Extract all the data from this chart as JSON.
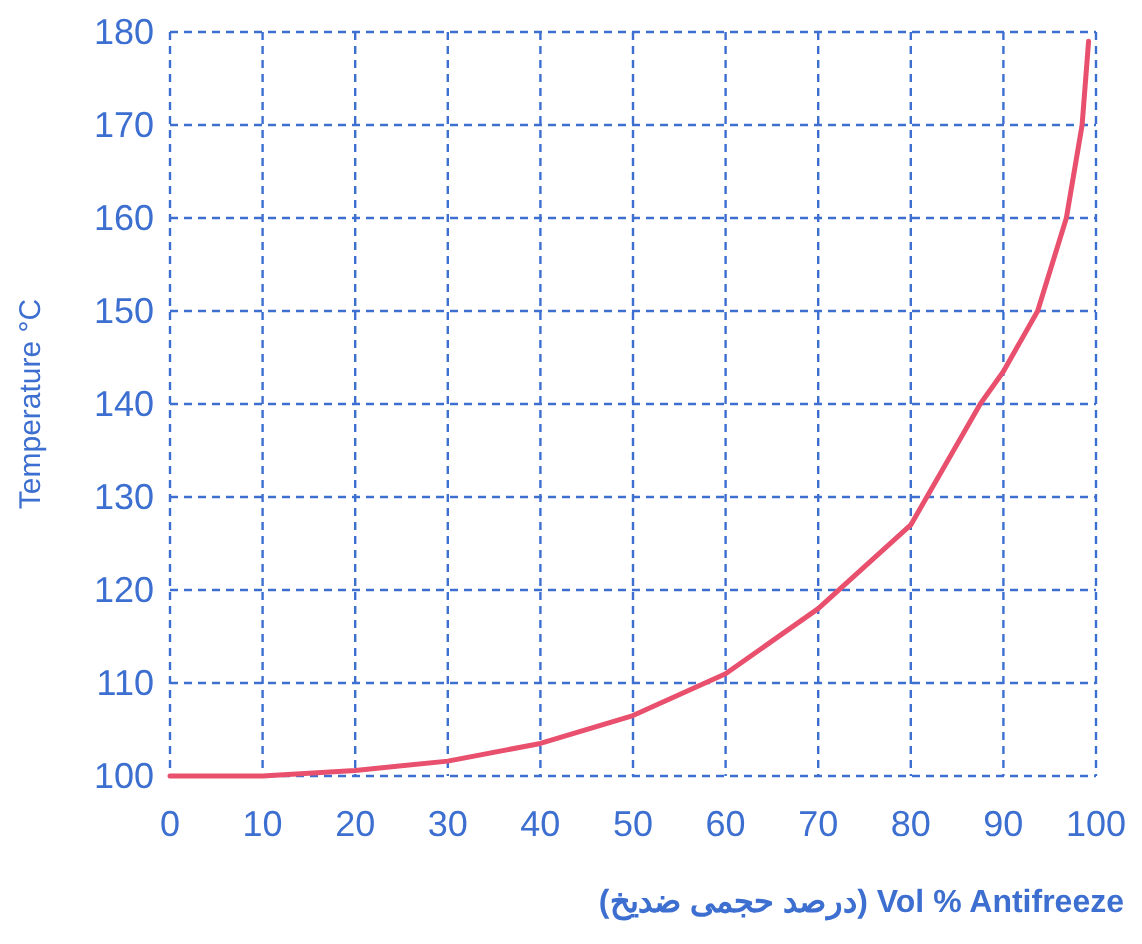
{
  "chart_data": {
    "type": "line",
    "xlabel": "(درصد حجمی ضدیخ)   Vol % Antifreeze",
    "ylabel": "Temperature °C",
    "x": [
      0,
      10,
      20,
      30,
      40,
      50,
      60,
      70,
      80,
      87.5,
      90,
      93.7,
      96.8,
      98.5,
      99.2
    ],
    "values": [
      100,
      100,
      100.6,
      101.6,
      103.5,
      106.5,
      111,
      118,
      127,
      140,
      143.5,
      150,
      160,
      170,
      179
    ],
    "color": "#e8506e",
    "xlim": [
      0,
      100
    ],
    "ylim": [
      100,
      180
    ],
    "xticks": [
      0,
      10,
      20,
      30,
      40,
      50,
      60,
      70,
      80,
      90,
      100
    ],
    "yticks": [
      100,
      110,
      120,
      130,
      140,
      150,
      160,
      170,
      180
    ],
    "grid": true,
    "line_style": "solid"
  }
}
